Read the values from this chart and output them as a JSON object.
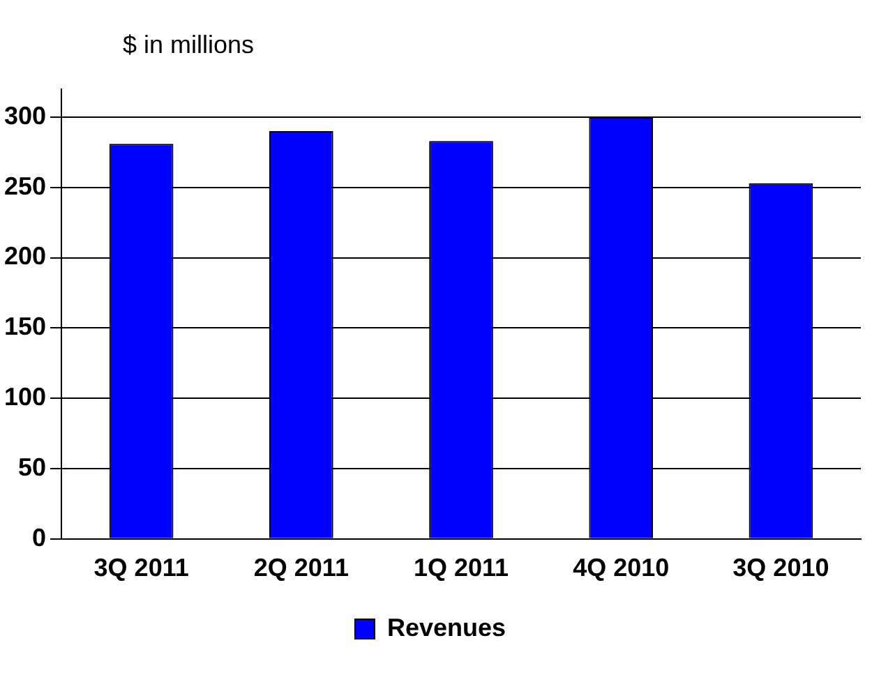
{
  "chart_data": {
    "type": "bar",
    "ylabel": "$ in millions",
    "categories": [
      "3Q 2011",
      "2Q 2011",
      "1Q 2011",
      "4Q 2010",
      "3Q 2010"
    ],
    "series": [
      {
        "name": "Revenues",
        "color": "#0000ff",
        "values": [
          281,
          290,
          283,
          300,
          253
        ]
      }
    ],
    "ylim": [
      0,
      320
    ],
    "yticks": [
      0,
      50,
      100,
      150,
      200,
      250,
      300
    ],
    "grid": "y",
    "legend": "bottom"
  }
}
